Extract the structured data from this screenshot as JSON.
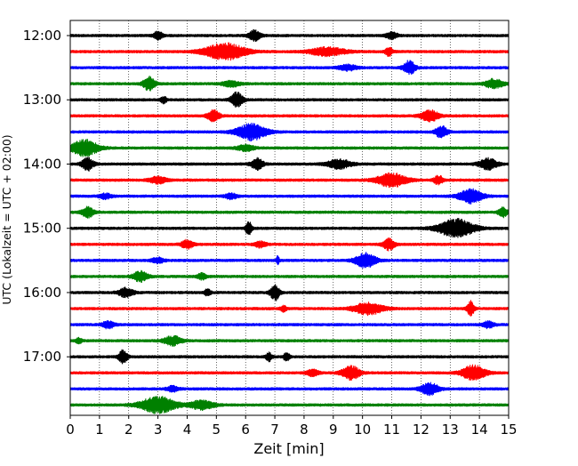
{
  "chart_data": {
    "type": "line",
    "title": "",
    "xlabel": "Zeit  [min]",
    "ylabel": "UTC (Lokalzeit = UTC + 02:00)",
    "xlim": [
      0,
      15
    ],
    "x_ticks": [
      "0",
      "1",
      "2",
      "3",
      "4",
      "5",
      "6",
      "7",
      "8",
      "9",
      "10",
      "11",
      "12",
      "13",
      "14",
      "15"
    ],
    "y_tick_labels": [
      "12:00",
      "13:00",
      "14:00",
      "15:00",
      "16:00",
      "17:00"
    ],
    "grid": "vertical dotted at each minute",
    "colors": [
      "#000000",
      "#ff0000",
      "#0000ff",
      "#008000"
    ],
    "traces": [
      {
        "start": "12:00",
        "color": "#000000",
        "events": [
          [
            3.0,
            0.45,
            0.15
          ],
          [
            6.3,
            0.55,
            0.2
          ],
          [
            11.0,
            0.35,
            0.2
          ]
        ]
      },
      {
        "start": "12:15",
        "color": "#ff0000",
        "events": [
          [
            5.3,
            0.9,
            0.7
          ],
          [
            8.8,
            0.45,
            0.6
          ],
          [
            10.9,
            0.45,
            0.12
          ]
        ]
      },
      {
        "start": "12:30",
        "color": "#0000ff",
        "events": [
          [
            11.6,
            0.75,
            0.2
          ],
          [
            9.5,
            0.3,
            0.3
          ]
        ]
      },
      {
        "start": "12:45",
        "color": "#008000",
        "events": [
          [
            2.7,
            0.75,
            0.2
          ],
          [
            14.5,
            0.5,
            0.3
          ],
          [
            5.5,
            0.3,
            0.3
          ]
        ]
      },
      {
        "start": "13:00",
        "color": "#000000",
        "events": [
          [
            5.7,
            0.8,
            0.2
          ],
          [
            3.2,
            0.35,
            0.1
          ]
        ]
      },
      {
        "start": "13:15",
        "color": "#ff0000",
        "events": [
          [
            4.9,
            0.6,
            0.2
          ],
          [
            12.3,
            0.6,
            0.3
          ]
        ]
      },
      {
        "start": "13:30",
        "color": "#0000ff",
        "events": [
          [
            6.2,
            0.9,
            0.5
          ],
          [
            12.7,
            0.65,
            0.2
          ]
        ]
      },
      {
        "start": "13:45",
        "color": "#008000",
        "events": [
          [
            0.5,
            0.9,
            0.45
          ],
          [
            6.0,
            0.3,
            0.3
          ]
        ]
      },
      {
        "start": "14:00",
        "color": "#000000",
        "events": [
          [
            0.6,
            0.7,
            0.2
          ],
          [
            6.4,
            0.6,
            0.2
          ],
          [
            9.2,
            0.5,
            0.4
          ],
          [
            14.3,
            0.6,
            0.3
          ]
        ]
      },
      {
        "start": "14:15",
        "color": "#ff0000",
        "events": [
          [
            11.0,
            0.75,
            0.5
          ],
          [
            12.6,
            0.5,
            0.15
          ],
          [
            3.0,
            0.35,
            0.3
          ]
        ]
      },
      {
        "start": "14:30",
        "color": "#0000ff",
        "events": [
          [
            13.7,
            0.75,
            0.4
          ],
          [
            1.2,
            0.3,
            0.2
          ],
          [
            5.5,
            0.3,
            0.2
          ]
        ]
      },
      {
        "start": "14:45",
        "color": "#008000",
        "events": [
          [
            0.6,
            0.55,
            0.2
          ],
          [
            14.8,
            0.5,
            0.15
          ]
        ]
      },
      {
        "start": "15:00",
        "color": "#000000",
        "events": [
          [
            13.2,
            1.0,
            0.6
          ],
          [
            6.1,
            0.8,
            0.1
          ]
        ]
      },
      {
        "start": "15:15",
        "color": "#ff0000",
        "events": [
          [
            4.0,
            0.45,
            0.2
          ],
          [
            10.9,
            0.6,
            0.2
          ],
          [
            6.5,
            0.3,
            0.2
          ]
        ]
      },
      {
        "start": "15:30",
        "color": "#0000ff",
        "events": [
          [
            10.1,
            0.8,
            0.35
          ],
          [
            7.1,
            0.45,
            0.05
          ],
          [
            3.0,
            0.3,
            0.2
          ]
        ]
      },
      {
        "start": "15:45",
        "color": "#008000",
        "events": [
          [
            2.4,
            0.55,
            0.25
          ],
          [
            4.5,
            0.35,
            0.15
          ]
        ]
      },
      {
        "start": "16:00",
        "color": "#000000",
        "events": [
          [
            1.9,
            0.5,
            0.25
          ],
          [
            7.0,
            0.9,
            0.15
          ],
          [
            4.7,
            0.4,
            0.1
          ]
        ]
      },
      {
        "start": "16:15",
        "color": "#ff0000",
        "events": [
          [
            10.2,
            0.65,
            0.5
          ],
          [
            13.7,
            0.8,
            0.12
          ],
          [
            7.3,
            0.3,
            0.1
          ]
        ]
      },
      {
        "start": "16:30",
        "color": "#0000ff",
        "events": [
          [
            1.3,
            0.4,
            0.2
          ],
          [
            14.3,
            0.35,
            0.2
          ]
        ]
      },
      {
        "start": "16:45",
        "color": "#008000",
        "events": [
          [
            3.5,
            0.5,
            0.3
          ],
          [
            0.3,
            0.3,
            0.1
          ]
        ]
      },
      {
        "start": "17:00",
        "color": "#000000",
        "events": [
          [
            1.8,
            0.7,
            0.15
          ],
          [
            6.8,
            0.45,
            0.1
          ],
          [
            7.4,
            0.45,
            0.1
          ]
        ]
      },
      {
        "start": "17:15",
        "color": "#ff0000",
        "events": [
          [
            9.6,
            0.75,
            0.3
          ],
          [
            13.8,
            0.8,
            0.4
          ],
          [
            8.3,
            0.35,
            0.2
          ]
        ]
      },
      {
        "start": "17:30",
        "color": "#0000ff",
        "events": [
          [
            12.3,
            0.65,
            0.3
          ],
          [
            3.5,
            0.3,
            0.2
          ]
        ]
      },
      {
        "start": "17:45",
        "color": "#008000",
        "events": [
          [
            3.0,
            0.9,
            0.6
          ],
          [
            4.5,
            0.5,
            0.4
          ]
        ]
      }
    ]
  }
}
